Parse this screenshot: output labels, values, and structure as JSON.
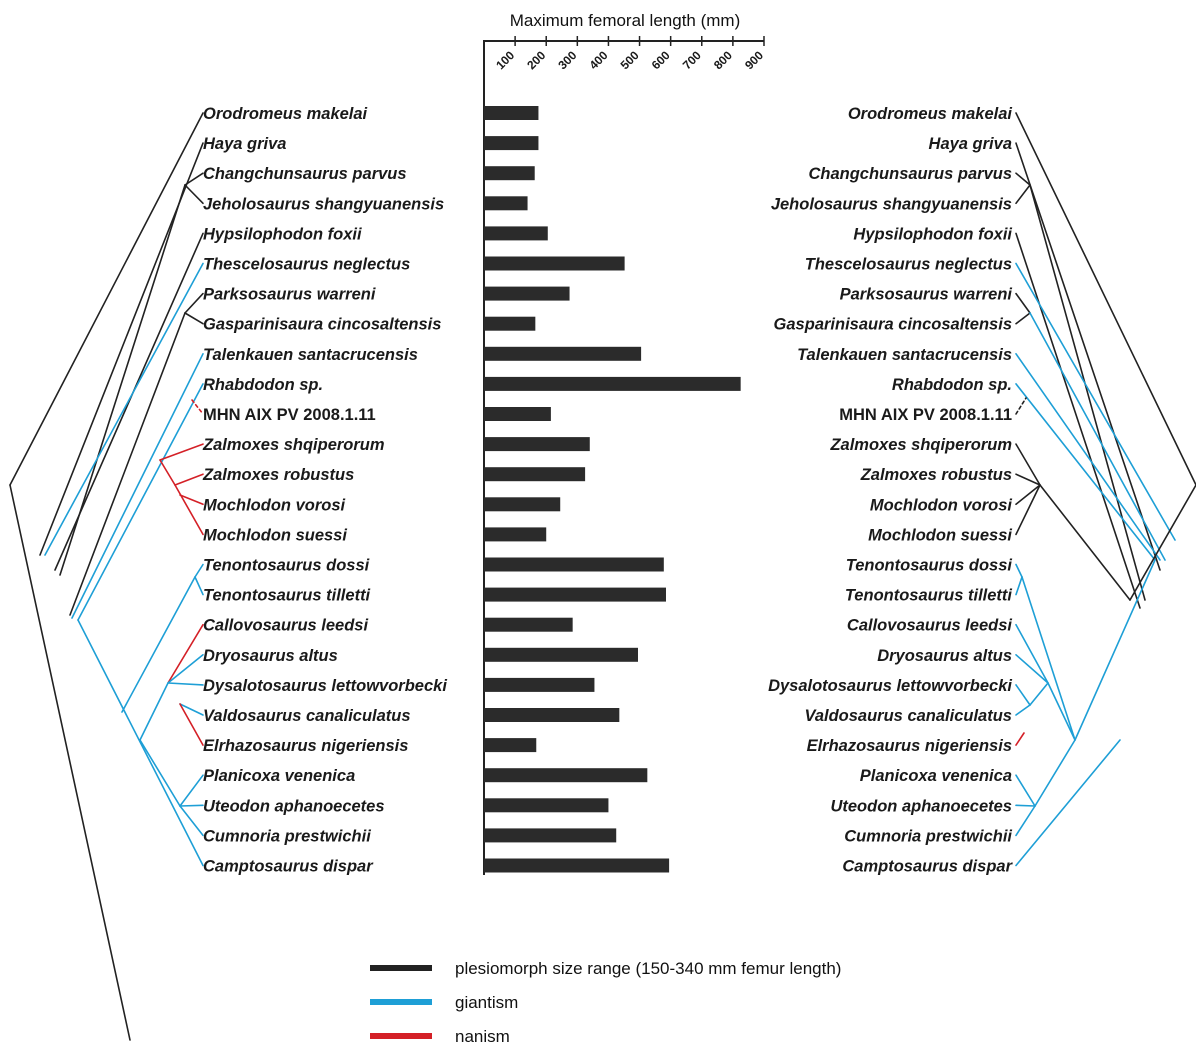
{
  "chart_data": {
    "type": "bar",
    "orientation": "horizontal",
    "title": "Maximum femoral length (mm)",
    "xlim": [
      0,
      900
    ],
    "ticks": [
      100,
      200,
      300,
      400,
      500,
      600,
      700,
      800,
      900
    ],
    "tick_labels": [
      "100",
      "200",
      "300",
      "400",
      "500",
      "600",
      "700",
      "800",
      "900"
    ],
    "categories": [
      "Orodromeus makelai",
      "Haya griva",
      "Changchunsaurus parvus",
      "Jeholosaurus shangyuanensis",
      "Hypsilophodon foxii",
      "Thescelosaurus neglectus",
      "Parksosaurus warreni",
      "Gasparinisaura cincosaltensis",
      "Talenkauen santacrucensis",
      "Rhabdodon sp.",
      "MHN AIX PV 2008.1.11",
      "Zalmoxes shqiperorum",
      "Zalmoxes robustus",
      "Mochlodon vorosi",
      "Mochlodon suessi",
      "Tenontosaurus dossi",
      "Tenontosaurus tilletti",
      "Callovosaurus leedsi",
      "Dryosaurus altus",
      "Dysalotosaurus lettowvorbecki",
      "Valdosaurus canaliculatus",
      "Elrhazosaurus nigeriensis",
      "Planicoxa venenica",
      "Uteodon aphanoecetes",
      "Cumnoria prestwichii",
      "Camptosaurus dispar"
    ],
    "values": [
      175,
      175,
      163,
      140,
      205,
      452,
      275,
      165,
      505,
      825,
      215,
      340,
      325,
      245,
      200,
      578,
      585,
      285,
      495,
      355,
      435,
      168,
      525,
      400,
      425,
      595
    ],
    "bar_color": "#2b2b2b",
    "legend": {
      "placement": "bottom",
      "entries": [
        {
          "label": "plesiomorph size range (150-340 mm femur length)",
          "color": "#222222"
        },
        {
          "label": "giantism",
          "color": "#1e9fd6"
        },
        {
          "label": "nanism",
          "color": "#d42027"
        }
      ]
    }
  }
}
